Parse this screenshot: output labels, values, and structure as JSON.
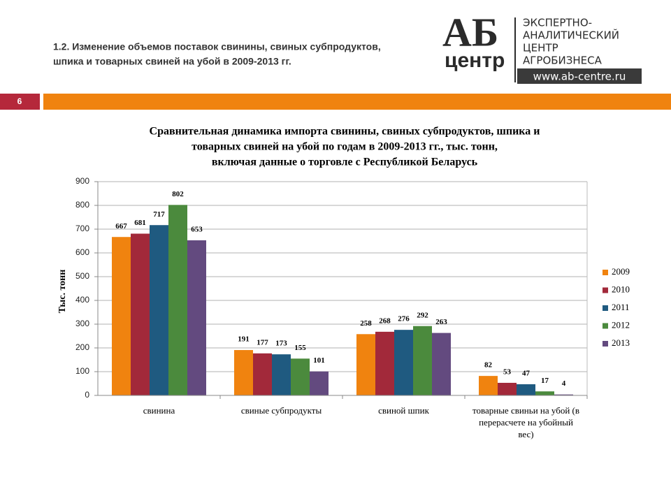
{
  "header": {
    "title_lines": [
      "1.2. Изменение объемов поставок свинины, свиных субпродуктов,",
      "шпика и товарных свиней на убой в 2009-2013 гг."
    ],
    "logo": {
      "mark": "АБ",
      "sub": "центр",
      "lines": [
        "ЭКСПЕРТНО-",
        "АНАЛИТИЧЕСКИЙ",
        "ЦЕНТР",
        "АГРОБИЗНЕСА"
      ],
      "url": "www.ab-centre.ru"
    },
    "slide_number": "6"
  },
  "chart_data": {
    "type": "bar",
    "title": [
      "Сравнительная динамика импорта свинины, свиных субпродуктов, шпика и",
      "товарных свиней на убой по годам в 2009-2013 гг., тыс. тонн,",
      "включая данные о торговле с Республикой Беларусь"
    ],
    "y_label": "Тыс. тонн",
    "categories": [
      "свинина",
      "свиные субпродукты",
      "свиной шпик",
      "товарные свиньи на убой (в перерасчете на убойный вес)"
    ],
    "series": [
      {
        "name": "2009",
        "color": "#f0830f",
        "values": [
          667,
          191,
          258,
          82
        ]
      },
      {
        "name": "2010",
        "color": "#a2293a",
        "values": [
          681,
          177,
          268,
          53
        ]
      },
      {
        "name": "2011",
        "color": "#1f5a80",
        "values": [
          717,
          173,
          276,
          47
        ]
      },
      {
        "name": "2012",
        "color": "#4b8a3d",
        "values": [
          802,
          155,
          292,
          17
        ]
      },
      {
        "name": "2013",
        "color": "#634a7f",
        "values": [
          653,
          101,
          263,
          4
        ]
      }
    ],
    "ylim": [
      0,
      900
    ],
    "yticks": [
      0,
      100,
      200,
      300,
      400,
      500,
      600,
      700,
      800,
      900
    ],
    "grid": true,
    "legend": "right"
  }
}
